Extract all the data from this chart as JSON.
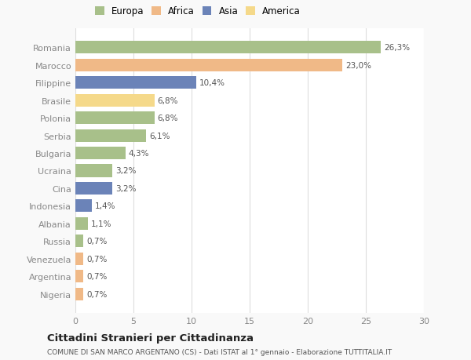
{
  "countries": [
    "Romania",
    "Marocco",
    "Filippine",
    "Brasile",
    "Polonia",
    "Serbia",
    "Bulgaria",
    "Ucraina",
    "Cina",
    "Indonesia",
    "Albania",
    "Russia",
    "Venezuela",
    "Argentina",
    "Nigeria"
  ],
  "values": [
    26.3,
    23.0,
    10.4,
    6.8,
    6.8,
    6.1,
    4.3,
    3.2,
    3.2,
    1.4,
    1.1,
    0.7,
    0.7,
    0.7,
    0.7
  ],
  "labels": [
    "26,3%",
    "23,0%",
    "10,4%",
    "6,8%",
    "6,8%",
    "6,1%",
    "4,3%",
    "3,2%",
    "3,2%",
    "1,4%",
    "1,1%",
    "0,7%",
    "0,7%",
    "0,7%",
    "0,7%"
  ],
  "colors": [
    "#a8c08a",
    "#f0b987",
    "#6b83b8",
    "#f5d98a",
    "#a8c08a",
    "#a8c08a",
    "#a8c08a",
    "#a8c08a",
    "#6b83b8",
    "#6b83b8",
    "#a8c08a",
    "#a8c08a",
    "#f0b987",
    "#f0b987",
    "#f0b987"
  ],
  "legend_labels": [
    "Europa",
    "Africa",
    "Asia",
    "America"
  ],
  "legend_colors": [
    "#a8c08a",
    "#f0b987",
    "#6b83b8",
    "#f5d98a"
  ],
  "xlim": [
    0,
    30
  ],
  "xticks": [
    0,
    5,
    10,
    15,
    20,
    25,
    30
  ],
  "title": "Cittadini Stranieri per Cittadinanza",
  "subtitle": "COMUNE DI SAN MARCO ARGENTANO (CS) - Dati ISTAT al 1° gennaio - Elaborazione TUTTITALIA.IT",
  "background_color": "#f9f9f9",
  "bar_background": "#ffffff",
  "bar_height": 0.72
}
